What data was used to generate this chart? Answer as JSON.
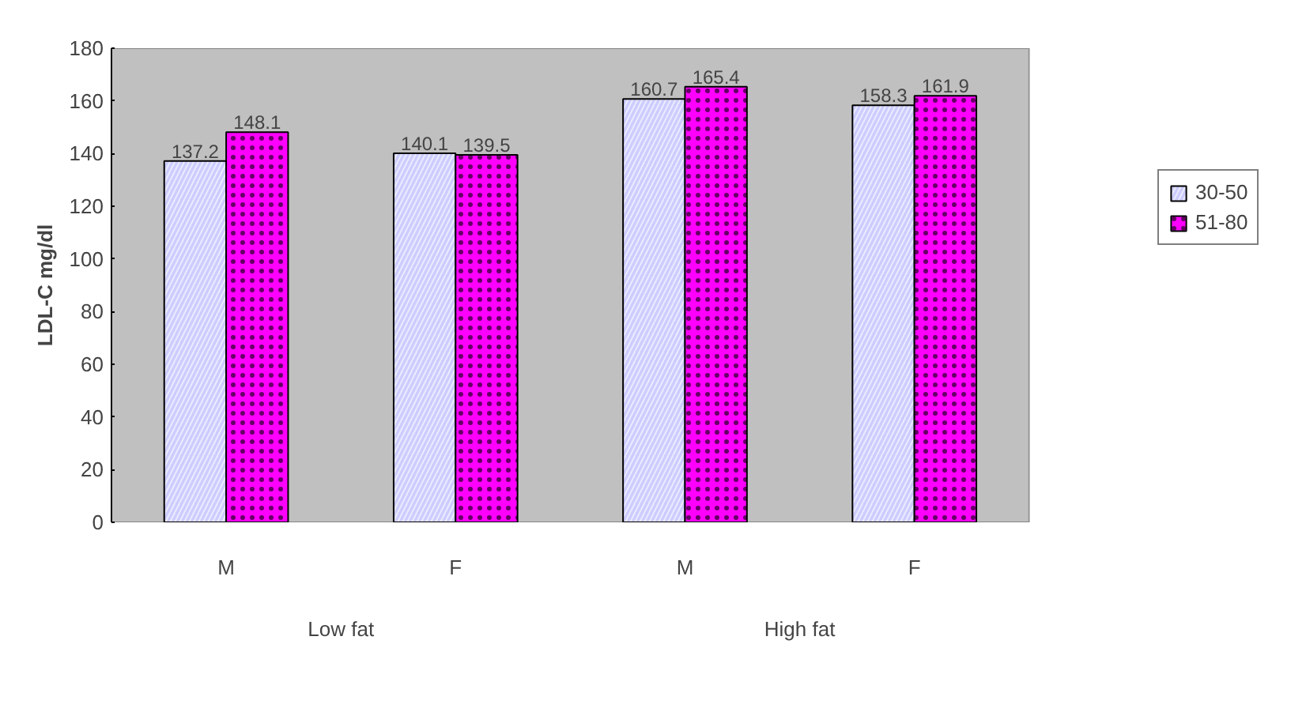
{
  "chart_data": {
    "type": "bar",
    "ylabel": "LDL-C mg/dl",
    "categories": [
      "M",
      "F",
      "M",
      "F"
    ],
    "annotations": [
      "Low fat",
      "High fat"
    ],
    "series": [
      {
        "name": "30-50",
        "color": "#ccccff",
        "values": [
          137.2,
          140.1,
          160.7,
          158.3
        ]
      },
      {
        "name": "51-80",
        "color": "#ff00ff",
        "values": [
          148.1,
          139.5,
          165.4,
          161.9
        ]
      }
    ],
    "ylim": [
      0,
      180
    ],
    "yticks": [
      0,
      20,
      40,
      60,
      80,
      100,
      120,
      140,
      160,
      180
    ],
    "legend": "right",
    "data_labels": true
  }
}
